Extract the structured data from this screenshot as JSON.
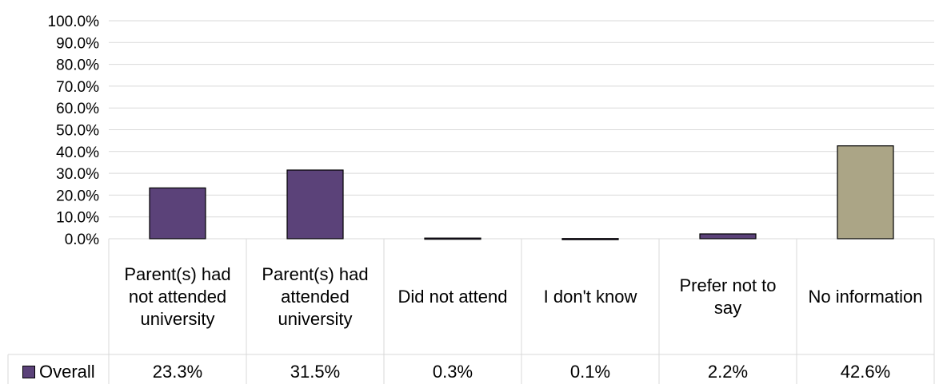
{
  "chart_data": {
    "type": "bar",
    "categories": [
      "Parent(s) had not attended university",
      "Parent(s) had attended university",
      "Did not attend",
      "I don't know",
      "Prefer not to say",
      "No information"
    ],
    "series": [
      {
        "name": "Overall",
        "values": [
          23.3,
          31.5,
          0.3,
          0.1,
          2.2,
          42.6
        ],
        "labels": [
          "23.3%",
          "31.5%",
          "0.3%",
          "0.1%",
          "2.2%",
          "42.6%"
        ],
        "color": "#5b4279",
        "highlight_color": "#aba586",
        "highlight_index": 5
      }
    ],
    "ylim": [
      0,
      100
    ],
    "yticks": [
      "0.0%",
      "10.0%",
      "20.0%",
      "30.0%",
      "40.0%",
      "50.0%",
      "60.0%",
      "70.0%",
      "80.0%",
      "90.0%",
      "100.0%"
    ],
    "grid": true,
    "data_table": true
  }
}
